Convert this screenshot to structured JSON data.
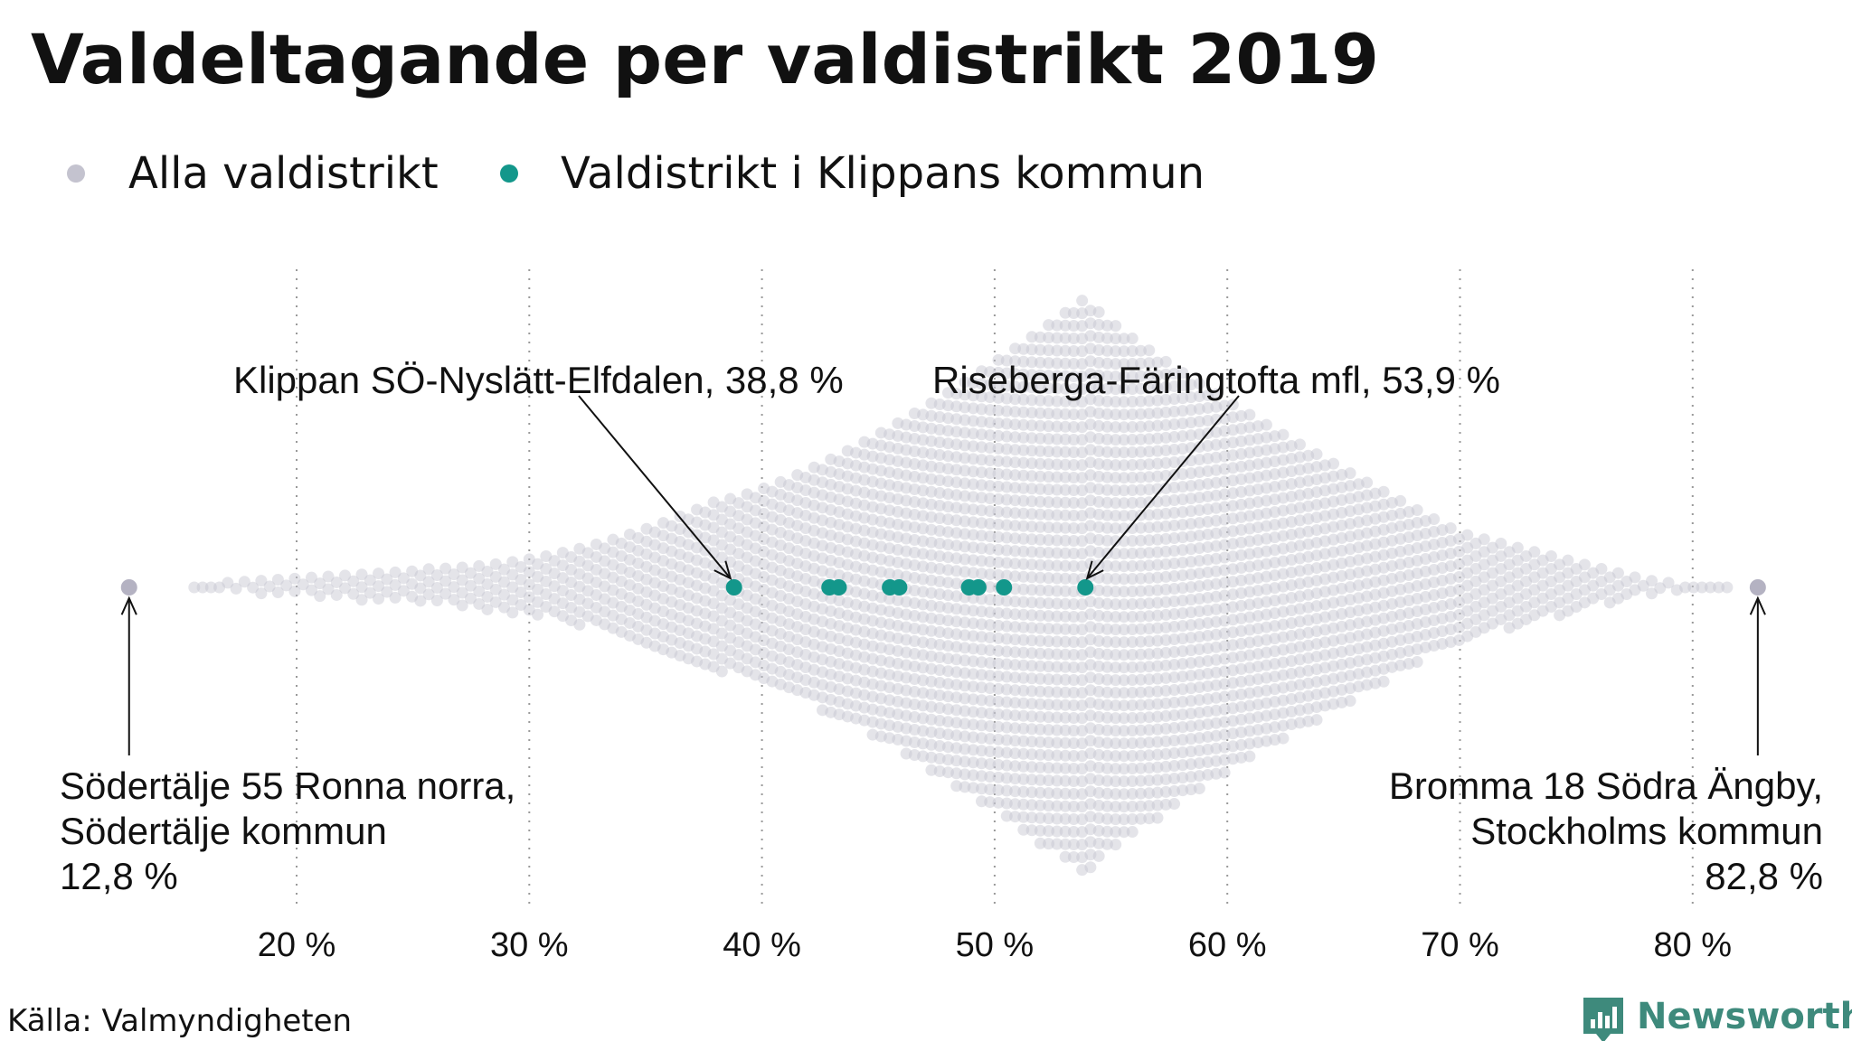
{
  "chart_data": {
    "type": "scatter",
    "title": "Valdeltagande per valdistrikt 2019",
    "legend_position": "top-left",
    "grid": true,
    "xlim": [
      10,
      85
    ],
    "xticks": [
      20,
      30,
      40,
      50,
      60,
      70,
      80
    ],
    "xtick_labels": [
      "20 %",
      "30 %",
      "40 %",
      "50 %",
      "60 %",
      "70 %",
      "80 %"
    ],
    "series": [
      {
        "name": "Alla valdistrikt",
        "color": "#c4c3cf",
        "distribution": {
          "min": 12.8,
          "max": 82.8,
          "peak": 53.9
        }
      },
      {
        "name": "Valdistrikt i Klippans kommun",
        "color": "#13978b",
        "values": [
          38.8,
          42.9,
          43.3,
          45.5,
          45.9,
          48.9,
          49.3,
          50.4,
          53.9
        ]
      }
    ],
    "annotations": [
      {
        "lines": [
          "Klippan SÖ-Nyslätt-Elfdalen, 38,8 %"
        ],
        "x": 38.8
      },
      {
        "lines": [
          "Riseberga-Färingtofta mfl, 53,9 %"
        ],
        "x": 53.9
      },
      {
        "lines": [
          "Södertälje 55 Ronna norra,",
          "Södertälje kommun",
          "12,8 %"
        ],
        "x": 12.8
      },
      {
        "lines": [
          "Bromma 18 Södra Ängby,",
          "Stockholms kommun",
          "82,8 %"
        ],
        "x": 82.8
      }
    ],
    "source": "Källa: Valmyndigheten",
    "brand": "Newsworthy"
  }
}
